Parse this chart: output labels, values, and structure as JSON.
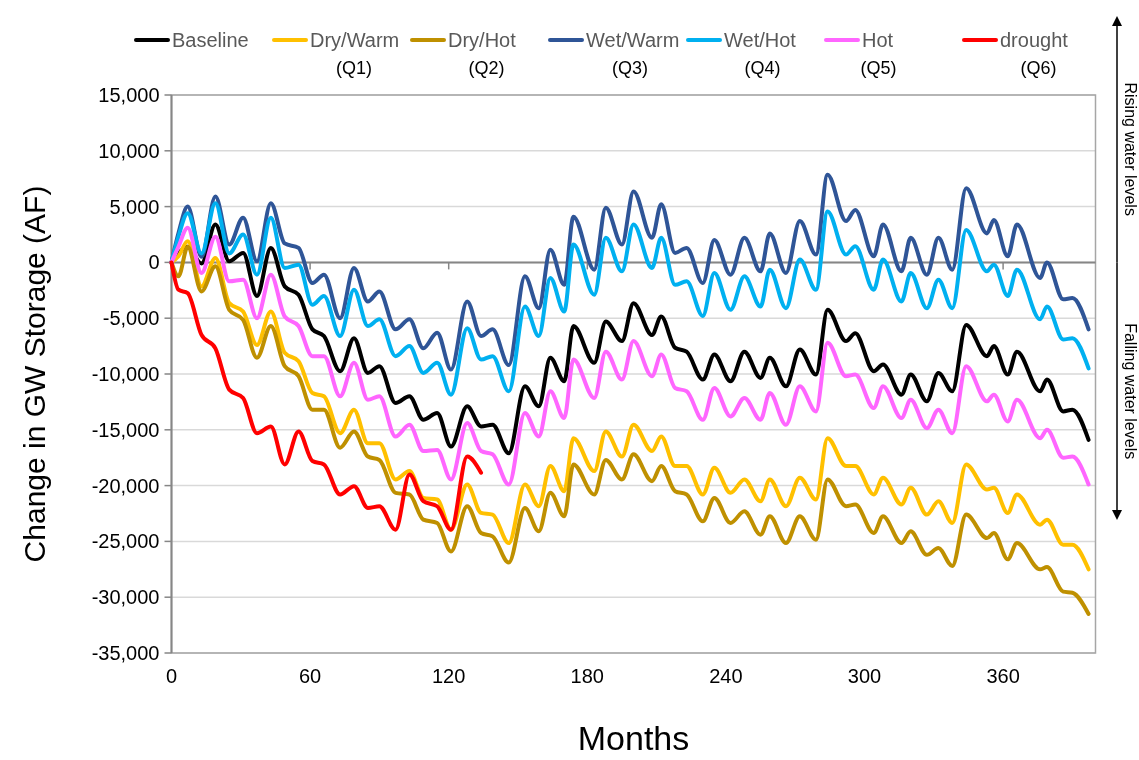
{
  "chart_data": {
    "type": "line",
    "xlabel": "Months",
    "ylabel": "Change in GW Storage (AF)",
    "annotations": [
      "Rising water levels",
      "Falling water levels"
    ],
    "x": [
      0,
      3,
      7,
      13,
      19,
      25,
      31,
      37,
      43,
      49,
      55,
      61,
      66,
      73,
      79,
      85,
      90,
      97,
      103,
      109,
      115,
      121,
      128,
      134,
      139,
      146,
      153,
      159,
      164,
      170,
      174,
      183,
      188,
      195,
      200,
      208,
      212,
      218,
      223,
      230,
      235,
      242,
      248,
      255,
      259,
      266,
      272,
      279,
      284,
      292,
      296,
      304,
      308,
      316,
      320,
      327,
      332,
      338,
      344,
      353,
      356,
      362,
      366,
      376,
      379,
      386,
      390,
      397
    ],
    "xlim": [
      0,
      400
    ],
    "xticks": [
      0,
      60,
      120,
      180,
      240,
      300,
      360
    ],
    "ylim": [
      -35000,
      15000
    ],
    "yticks": [
      {
        "value": -35000,
        "label": "-35,000"
      },
      {
        "value": -30000,
        "label": "-30,000"
      },
      {
        "value": -25000,
        "label": "-25,000"
      },
      {
        "value": -20000,
        "label": "-20,000"
      },
      {
        "value": -15000,
        "label": "-15,000"
      },
      {
        "value": -10000,
        "label": "-10,000"
      },
      {
        "value": -5000,
        "label": "-5,000"
      },
      0,
      {
        "value": 5000,
        "label": "5,000"
      },
      {
        "value": 10000,
        "label": "10,000"
      },
      {
        "value": 15000,
        "label": "15,000"
      }
    ],
    "grid": "y",
    "legend": "top",
    "line_style": "solid",
    "marker": "none",
    "series": [
      {
        "name": "Baseline",
        "color": "#000000",
        "values": [
          0,
          800,
          1400,
          -100,
          3400,
          100,
          850,
          -3000,
          1300,
          -2150,
          -2900,
          -6000,
          -6600,
          -9750,
          -6800,
          -9900,
          -9300,
          -12600,
          -12000,
          -14100,
          -13500,
          -16500,
          -12900,
          -14700,
          -14550,
          -17100,
          -11100,
          -12900,
          -8550,
          -10650,
          -5700,
          -9000,
          -5300,
          -7050,
          -3650,
          -6500,
          -4850,
          -7650,
          -8000,
          -10500,
          -8250,
          -10650,
          -8000,
          -10350,
          -8550,
          -11100,
          -7800,
          -10050,
          -4250,
          -7050,
          -6350,
          -9750,
          -9150,
          -11850,
          -10050,
          -12450,
          -9900,
          -11550,
          -5600,
          -8400,
          -7500,
          -10050,
          -8000,
          -11550,
          -10500,
          -13350,
          -13200,
          -15900
        ]
      },
      {
        "name": "Dry/Warm (Q1)",
        "color": "#ffc000",
        "values": [
          0,
          550,
          1900,
          -2150,
          400,
          -3650,
          -4400,
          -7400,
          -4400,
          -8100,
          -8850,
          -11700,
          -12000,
          -15300,
          -13200,
          -16200,
          -16200,
          -19450,
          -18700,
          -21100,
          -21250,
          -23950,
          -19900,
          -22450,
          -22600,
          -25150,
          -19900,
          -21850,
          -18250,
          -20500,
          -15750,
          -18700,
          -15150,
          -17400,
          -14550,
          -16900,
          -15600,
          -18250,
          -18250,
          -20800,
          -18400,
          -20650,
          -19450,
          -21400,
          -19450,
          -21850,
          -19300,
          -21250,
          -15750,
          -18250,
          -18250,
          -20800,
          -19300,
          -21700,
          -20200,
          -22600,
          -21400,
          -23350,
          -18100,
          -20350,
          -20200,
          -22450,
          -20800,
          -23500,
          -23050,
          -25300,
          -25300,
          -27500
        ]
      },
      {
        "name": "Dry/Hot (Q2)",
        "color": "#bf9000",
        "values": [
          0,
          -1250,
          1400,
          -2600,
          -350,
          -4250,
          -5150,
          -8550,
          -5700,
          -9300,
          -10200,
          -13200,
          -13200,
          -16600,
          -15150,
          -17400,
          -17700,
          -20650,
          -20800,
          -23050,
          -23350,
          -25900,
          -21850,
          -24250,
          -24550,
          -26900,
          -22000,
          -24100,
          -20650,
          -22750,
          -18100,
          -20800,
          -17700,
          -19450,
          -17200,
          -19600,
          -18250,
          -20500,
          -20800,
          -23200,
          -21100,
          -23350,
          -22300,
          -24400,
          -22750,
          -25150,
          -22750,
          -24850,
          -19450,
          -21850,
          -21700,
          -24250,
          -22750,
          -25150,
          -24100,
          -26200,
          -25600,
          -27200,
          -22600,
          -24700,
          -24250,
          -26600,
          -25150,
          -27500,
          -27300,
          -29500,
          -29600,
          -31500
        ]
      },
      {
        "name": "Wet/Warm (Q3)",
        "color": "#2f5597",
        "values": [
          0,
          2600,
          5000,
          500,
          5900,
          1600,
          4000,
          100,
          5300,
          1700,
          1300,
          -1850,
          -1100,
          -5000,
          -500,
          -3500,
          -2600,
          -6000,
          -5100,
          -7700,
          -6300,
          -9600,
          -3500,
          -6600,
          -6000,
          -9200,
          -1250,
          -4100,
          1130,
          -2000,
          4100,
          -650,
          4900,
          1600,
          6350,
          2200,
          5200,
          850,
          1300,
          -1850,
          2000,
          -1100,
          2200,
          -800,
          2600,
          -950,
          3700,
          700,
          7850,
          3700,
          4700,
          550,
          3400,
          -800,
          2200,
          -1100,
          2200,
          -650,
          6650,
          2600,
          3800,
          550,
          3400,
          -1400,
          0,
          -3300,
          -3200,
          -6000
        ]
      },
      {
        "name": "Wet/Hot (Q4)",
        "color": "#00b0f0",
        "values": [
          0,
          2300,
          4400,
          800,
          5300,
          800,
          2500,
          -1100,
          4000,
          -500,
          -200,
          -3800,
          -3000,
          -6600,
          -2450,
          -5700,
          -5100,
          -8400,
          -7500,
          -9900,
          -9000,
          -11850,
          -5900,
          -8700,
          -8400,
          -11550,
          -3950,
          -6600,
          -1400,
          -4400,
          1600,
          -2900,
          2200,
          -800,
          3400,
          -500,
          2200,
          -2000,
          -1700,
          -4800,
          -950,
          -4250,
          -1250,
          -3950,
          -650,
          -4100,
          250,
          -2450,
          4550,
          700,
          1450,
          -2450,
          250,
          -3500,
          -950,
          -4100,
          -1550,
          -4100,
          2900,
          -800,
          -200,
          -3000,
          -650,
          -5100,
          -3950,
          -6900,
          -6800,
          -9500
        ]
      },
      {
        "name": "Hot (Q5)",
        "color": "#ff66ff",
        "values": [
          0,
          1400,
          3100,
          -950,
          2300,
          -1700,
          -1550,
          -5000,
          -1100,
          -4850,
          -5700,
          -8400,
          -8400,
          -12000,
          -9000,
          -12300,
          -12000,
          -15600,
          -14550,
          -16900,
          -16800,
          -19450,
          -14400,
          -16900,
          -17200,
          -19900,
          -13500,
          -15600,
          -11550,
          -13950,
          -8700,
          -12150,
          -8000,
          -10500,
          -7050,
          -10200,
          -8250,
          -11250,
          -11550,
          -14100,
          -11250,
          -13800,
          -12150,
          -14100,
          -11700,
          -14550,
          -11100,
          -13350,
          -7200,
          -10200,
          -10050,
          -13050,
          -11100,
          -13950,
          -12300,
          -14850,
          -13200,
          -15300,
          -9300,
          -12450,
          -11850,
          -14250,
          -12300,
          -15750,
          -15000,
          -17500,
          -17400,
          -19900
        ]
      },
      {
        "name": "drought (Q6)",
        "color": "#ff0000",
        "values": [
          0,
          -2450,
          -2750,
          -6500,
          -7700,
          -11400,
          -12150,
          -15300,
          -14700,
          -18100,
          -15150,
          -17800,
          -18100,
          -20800,
          -20050,
          -22000,
          -21850,
          -23950,
          -19000,
          -21400,
          -21850,
          -23950,
          -17400,
          -18850,
          null,
          null,
          null,
          null,
          null,
          null,
          null,
          null,
          null,
          null,
          null,
          null,
          null,
          null,
          null,
          null,
          null,
          null,
          null,
          null,
          null,
          null,
          null,
          null,
          null,
          null,
          null,
          null,
          null,
          null,
          null,
          null,
          null,
          null,
          null,
          null,
          null,
          null,
          null,
          null,
          null,
          null,
          null,
          null
        ]
      }
    ]
  }
}
